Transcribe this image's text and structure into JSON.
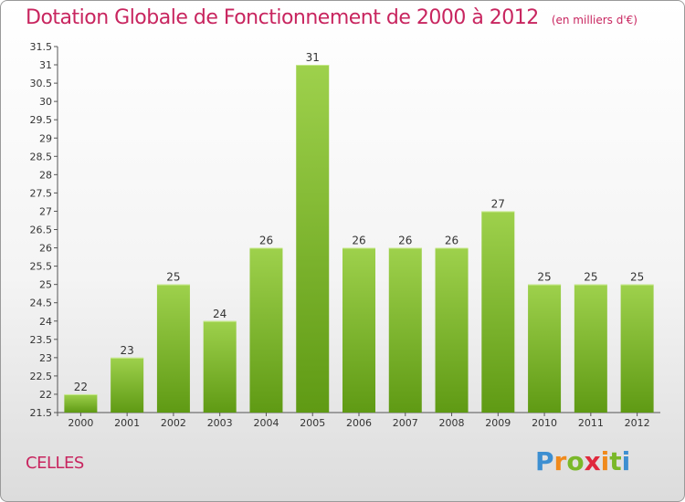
{
  "header": {
    "title": "Dotation Globale de Fonctionnement de 2000 à 2012",
    "unit": "(en milliers d'€)"
  },
  "footer": {
    "commune": "CELLES",
    "brand_letters": [
      "P",
      "r",
      "o",
      "x",
      "i",
      "t",
      "i"
    ],
    "brand_colors": [
      "#3d8fd1",
      "#f08a1c",
      "#7ab829",
      "#e0283c",
      "#f08a1c",
      "#7ab829",
      "#3d8fd1"
    ]
  },
  "colors": {
    "title": "#c8255f",
    "bar_light": "#9ed14c",
    "bar_dark": "#5f9a14"
  },
  "chart_data": {
    "type": "bar",
    "title": "Dotation Globale de Fonctionnement de 2000 à 2012",
    "subtitle": "(en milliers d'€)",
    "xlabel": "",
    "ylabel": "",
    "categories": [
      "2000",
      "2001",
      "2002",
      "2003",
      "2004",
      "2005",
      "2006",
      "2007",
      "2008",
      "2009",
      "2010",
      "2011",
      "2012"
    ],
    "values": [
      22,
      23,
      25,
      24,
      26,
      31,
      26,
      26,
      26,
      27,
      25,
      25,
      25
    ],
    "data_labels": [
      "22",
      "23",
      "25",
      "24",
      "26",
      "31",
      "26",
      "26",
      "26",
      "27",
      "25",
      "25",
      "25"
    ],
    "ylim": [
      21.5,
      31.5
    ],
    "y_ticks": [
      "21.5",
      "22",
      "22.5",
      "23",
      "23.5",
      "24",
      "24.5",
      "25",
      "25.5",
      "26",
      "26.5",
      "27",
      "27.5",
      "28",
      "28.5",
      "29",
      "29.5",
      "30",
      "30.5",
      "31",
      "31.5"
    ],
    "grid": false,
    "legend": "none"
  }
}
